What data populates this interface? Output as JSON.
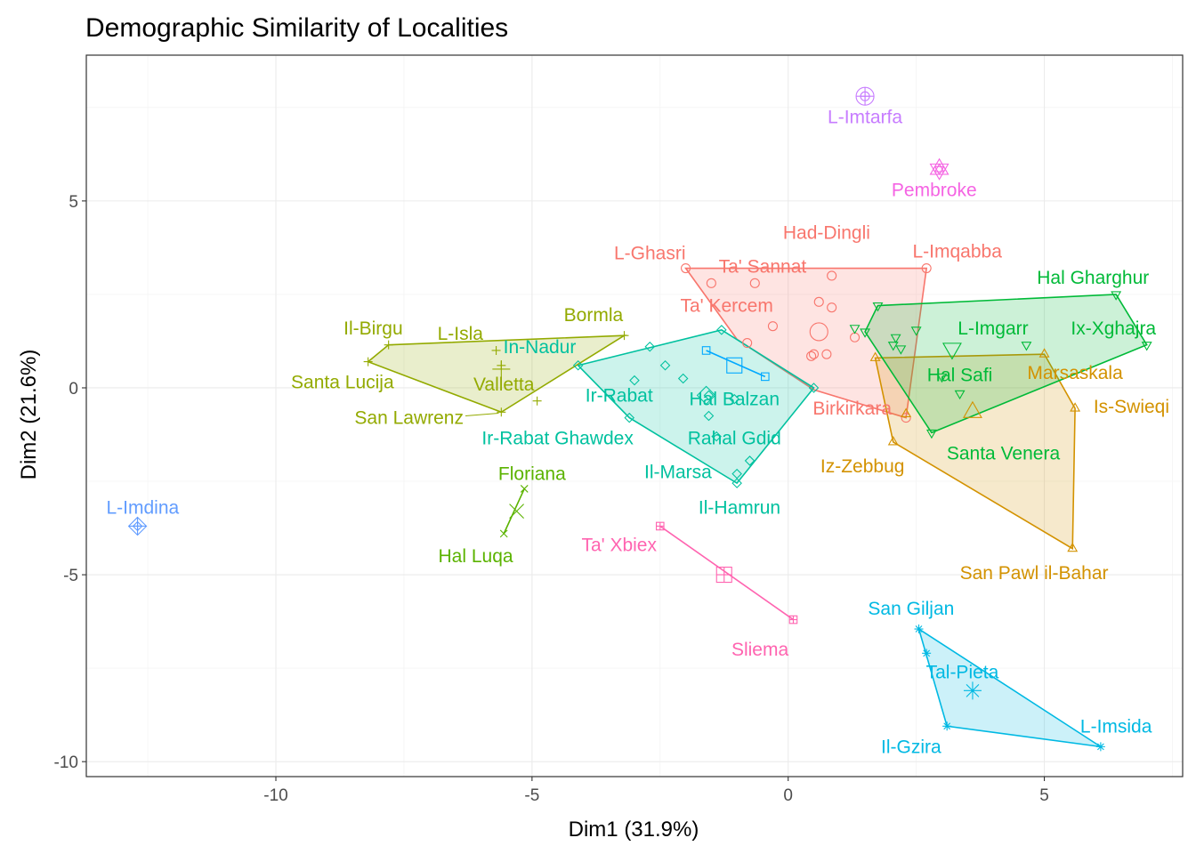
{
  "chart_data": {
    "type": "scatter",
    "title": "Demographic Similarity of Localities",
    "xlabel": "Dim1 (31.9%)",
    "ylabel": "Dim2 (21.6%)",
    "xlim": [
      -13.7,
      7.7
    ],
    "ylim": [
      -10.4,
      8.9
    ],
    "xticks": [
      -10,
      -5,
      0,
      5
    ],
    "yticks": [
      -10,
      -5,
      0,
      5
    ],
    "grid": true,
    "groups": [
      {
        "color": "#F8766D",
        "shape": "circle",
        "centroid": [
          0.6,
          1.5
        ],
        "hull": [
          [
            -2.0,
            3.2
          ],
          [
            2.7,
            3.2
          ],
          [
            2.3,
            -0.8
          ],
          [
            0.5,
            -0.05
          ],
          [
            -1.0,
            1.3
          ]
        ],
        "points": [
          {
            "label": "L-Ghasri",
            "x": -2.0,
            "y": 3.2,
            "lx": -2.7,
            "ly": 3.6
          },
          {
            "label": "Ta' Sannat",
            "x": -0.65,
            "y": 2.8,
            "lx": -0.5,
            "ly": 3.25
          },
          {
            "label": "Had-Dingli",
            "x": 0.85,
            "y": 3.0,
            "lx": 0.75,
            "ly": 4.15
          },
          {
            "label": "L-Imqabba",
            "x": 2.7,
            "y": 3.2,
            "lx": 3.3,
            "ly": 3.65
          },
          {
            "label": "Ta' Kercem",
            "x": -1.5,
            "y": 2.8,
            "lx": -1.2,
            "ly": 2.2
          },
          {
            "label": "Birkirkara",
            "x": 2.3,
            "y": -0.8,
            "lx": 1.25,
            "ly": -0.55
          },
          {
            "label": "",
            "x": -0.3,
            "y": 1.65
          },
          {
            "label": "",
            "x": 0.6,
            "y": 2.3
          },
          {
            "label": "",
            "x": 0.85,
            "y": 2.15
          },
          {
            "label": "",
            "x": 0.75,
            "y": 0.9
          },
          {
            "label": "",
            "x": 0.5,
            "y": 0.9
          },
          {
            "label": "",
            "x": -0.8,
            "y": 1.2
          },
          {
            "label": "",
            "x": 1.3,
            "y": 1.35
          },
          {
            "label": "",
            "x": 0.45,
            "y": 0.85
          }
        ]
      },
      {
        "color": "#D39200",
        "shape": "triangle",
        "centroid": [
          3.6,
          -0.65
        ],
        "hull": [
          [
            1.7,
            0.8
          ],
          [
            5.0,
            0.9
          ],
          [
            5.6,
            -0.55
          ],
          [
            5.55,
            -4.3
          ],
          [
            2.05,
            -1.45
          ]
        ],
        "points": [
          {
            "label": "Marsaskala",
            "x": 5.0,
            "y": 0.9,
            "lx": 5.6,
            "ly": 0.4
          },
          {
            "label": "Is-Swieqi",
            "x": 5.6,
            "y": -0.55,
            "lx": 6.7,
            "ly": -0.5
          },
          {
            "label": "Iz-Zebbug",
            "x": 2.05,
            "y": -1.45,
            "lx": 1.45,
            "ly": -2.1
          },
          {
            "label": "San Pawl il-Bahar",
            "x": 5.55,
            "y": -4.3,
            "lx": 4.8,
            "ly": -4.95
          },
          {
            "label": "",
            "x": 1.7,
            "y": 0.8
          },
          {
            "label": "",
            "x": 2.3,
            "y": -0.7
          }
        ]
      },
      {
        "color": "#93AA00",
        "shape": "plus",
        "centroid": [
          -5.6,
          0.5
        ],
        "hull": [
          [
            -7.8,
            1.15
          ],
          [
            -3.2,
            1.4
          ],
          [
            -5.6,
            -0.65
          ],
          [
            -8.2,
            0.7
          ]
        ],
        "points": [
          {
            "label": "Il-Birgu",
            "x": -7.8,
            "y": 1.15,
            "lx": -8.1,
            "ly": 1.6
          },
          {
            "label": "L-Isla",
            "x": -5.7,
            "y": 1.0,
            "lx": -6.4,
            "ly": 1.45
          },
          {
            "label": "Bormla",
            "x": -3.2,
            "y": 1.4,
            "lx": -3.8,
            "ly": 1.95
          },
          {
            "label": "Santa Lucija",
            "x": -8.2,
            "y": 0.7,
            "lx": -8.7,
            "ly": 0.15
          },
          {
            "label": "Valletta",
            "x": -5.6,
            "y": 0.6,
            "lx": -5.55,
            "ly": 0.1
          },
          {
            "label": "San Lawrenz",
            "x": -5.6,
            "y": -0.65,
            "lx": -7.4,
            "ly": -0.8,
            "leader": [
              [
                -6.3,
                -0.75
              ],
              [
                -5.65,
                -0.68
              ]
            ]
          },
          {
            "label": "",
            "x": -4.9,
            "y": -0.35
          }
        ]
      },
      {
        "color": "#5BB300",
        "shape": "cross",
        "centroid": [
          -5.3,
          -3.3
        ],
        "hull": [
          [
            -5.15,
            -2.7
          ],
          [
            -5.55,
            -3.9
          ]
        ],
        "points": [
          {
            "label": "Floriana",
            "x": -5.15,
            "y": -2.7,
            "lx": -5.0,
            "ly": -2.3
          },
          {
            "label": "Hal Luqa",
            "x": -5.55,
            "y": -3.9,
            "lx": -6.1,
            "ly": -4.5
          }
        ]
      },
      {
        "color": "#00C19F",
        "shape": "diamond",
        "centroid": [
          -1.6,
          -0.2
        ],
        "hull": [
          [
            -4.1,
            0.6
          ],
          [
            -1.3,
            1.55
          ],
          [
            0.5,
            0.0
          ],
          [
            -1.0,
            -2.55
          ],
          [
            -3.1,
            -0.8
          ]
        ],
        "points": [
          {
            "label": "In-Nadur",
            "x": -4.1,
            "y": 0.6,
            "lx": -4.85,
            "ly": 1.1
          },
          {
            "label": "Ir-Rabat",
            "x": -3.0,
            "y": 0.2,
            "lx": -3.3,
            "ly": -0.2
          },
          {
            "label": "Hal Balzan",
            "x": -1.05,
            "y": -0.3,
            "lx": -1.05,
            "ly": -0.3
          },
          {
            "label": "Ir-Rabat Ghawdex",
            "x": -3.1,
            "y": -0.8,
            "lx": -4.5,
            "ly": -1.35
          },
          {
            "label": "Rahal Gdid",
            "x": -1.4,
            "y": -1.3,
            "lx": -1.05,
            "ly": -1.35
          },
          {
            "label": "Il-Marsa",
            "x": -1.0,
            "y": -2.3,
            "lx": -2.15,
            "ly": -2.25
          },
          {
            "label": "Il-Hamrun",
            "x": -1.0,
            "y": -2.55,
            "lx": -0.95,
            "ly": -3.2
          },
          {
            "label": "",
            "x": -2.7,
            "y": 1.1
          },
          {
            "label": "",
            "x": -2.4,
            "y": 0.6
          },
          {
            "label": "",
            "x": -2.05,
            "y": 0.25
          },
          {
            "label": "",
            "x": -1.3,
            "y": 1.55
          },
          {
            "label": "",
            "x": -1.55,
            "y": -0.2
          },
          {
            "label": "",
            "x": -0.75,
            "y": -1.95
          },
          {
            "label": "",
            "x": 0.5,
            "y": 0.0
          },
          {
            "label": "",
            "x": -1.55,
            "y": -0.75
          }
        ]
      },
      {
        "color": "#00BA38",
        "shape": "triangle-down",
        "centroid": [
          3.2,
          1.05
        ],
        "hull": [
          [
            1.5,
            1.5
          ],
          [
            1.75,
            2.2
          ],
          [
            6.4,
            2.5
          ],
          [
            7.0,
            1.15
          ],
          [
            2.8,
            -1.2
          ]
        ],
        "points": [
          {
            "label": "Hal Gharghur",
            "x": 6.4,
            "y": 2.5,
            "lx": 5.95,
            "ly": 2.95
          },
          {
            "label": "L-Imgarr",
            "x": 2.5,
            "y": 1.55,
            "lx": 4.0,
            "ly": 1.6
          },
          {
            "label": "Ix-Xghajra",
            "x": 7.0,
            "y": 1.15,
            "lx": 6.35,
            "ly": 1.6
          },
          {
            "label": "Hal Safi",
            "x": 3.0,
            "y": 0.3,
            "lx": 3.35,
            "ly": 0.35
          },
          {
            "label": "Santa Venera",
            "x": 2.8,
            "y": -1.2,
            "lx": 4.2,
            "ly": -1.75
          },
          {
            "label": "",
            "x": 1.5,
            "y": 1.5
          },
          {
            "label": "",
            "x": 1.75,
            "y": 2.2
          },
          {
            "label": "",
            "x": 2.05,
            "y": 1.15
          },
          {
            "label": "",
            "x": 2.1,
            "y": 1.35
          },
          {
            "label": "",
            "x": 2.2,
            "y": 1.05
          },
          {
            "label": "",
            "x": 1.3,
            "y": 1.6
          },
          {
            "label": "",
            "x": 4.65,
            "y": 1.15
          },
          {
            "label": "",
            "x": 3.35,
            "y": -0.15
          }
        ]
      },
      {
        "color": "#00B9E3",
        "shape": "star",
        "centroid": [
          3.6,
          -8.1
        ],
        "hull": [
          [
            2.55,
            -6.45
          ],
          [
            6.1,
            -9.6
          ],
          [
            3.1,
            -9.05
          ]
        ],
        "points": [
          {
            "label": "San Giljan",
            "x": 2.55,
            "y": -6.45,
            "lx": 2.4,
            "ly": -5.9
          },
          {
            "label": "Tal-Pieta",
            "x": 2.7,
            "y": -7.1,
            "lx": 3.4,
            "ly": -7.6
          },
          {
            "label": "L-Imsida",
            "x": 6.1,
            "y": -9.6,
            "lx": 6.4,
            "ly": -9.05
          },
          {
            "label": "Il-Gzira",
            "x": 3.1,
            "y": -9.05,
            "lx": 2.4,
            "ly": -9.6
          }
        ]
      },
      {
        "color": "#00A9FF",
        "shape": "square",
        "centroid": [
          -1.05,
          0.6
        ],
        "hull": [
          [
            -1.6,
            1.0
          ],
          [
            -0.45,
            0.3
          ]
        ],
        "points": [
          {
            "label": "",
            "x": -1.6,
            "y": 1.0
          },
          {
            "label": "",
            "x": -0.45,
            "y": 0.3
          }
        ]
      },
      {
        "color": "#619CFF",
        "shape": "diamond-plus",
        "centroid": [
          -12.7,
          -3.7
        ],
        "hull": [],
        "points": [
          {
            "label": "L-Imdina",
            "x": -12.7,
            "y": -3.7,
            "lx": -12.6,
            "ly": -3.2
          }
        ]
      },
      {
        "color": "#C77CFF",
        "shape": "circle-plus",
        "centroid": [
          1.5,
          7.8
        ],
        "hull": [],
        "points": [
          {
            "label": "L-Imtarfa",
            "x": 1.5,
            "y": 7.8,
            "lx": 1.5,
            "ly": 7.25
          }
        ]
      },
      {
        "color": "#F564E3",
        "shape": "hexagram",
        "centroid": [
          2.95,
          5.85
        ],
        "hull": [],
        "points": [
          {
            "label": "Pembroke",
            "x": 2.95,
            "y": 5.85,
            "lx": 2.85,
            "ly": 5.3
          }
        ]
      },
      {
        "color": "#FF64B0",
        "shape": "square-plus",
        "centroid": [
          -1.25,
          -5.0
        ],
        "hull": [
          [
            -2.5,
            -3.7
          ],
          [
            0.1,
            -6.2
          ]
        ],
        "points": [
          {
            "label": "Ta' Xbiex",
            "x": -2.5,
            "y": -3.7,
            "lx": -3.3,
            "ly": -4.2
          },
          {
            "label": "Sliema",
            "x": 0.1,
            "y": -6.2,
            "lx": -0.55,
            "ly": -7.0
          }
        ]
      }
    ]
  }
}
